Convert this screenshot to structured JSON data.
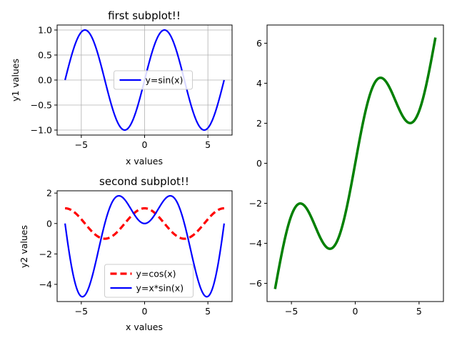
{
  "chart_data": [
    {
      "type": "line",
      "title": "first subplot!!",
      "xlabel": "x values",
      "ylabel": "y1 values",
      "xlim": [
        -6.91,
        6.91
      ],
      "ylim": [
        -1.1,
        1.1
      ],
      "xticks": [
        -5,
        0,
        5
      ],
      "xtick_labels": [
        "−5",
        "0",
        "5"
      ],
      "yticks": [
        -1.0,
        -0.5,
        0.0,
        0.5,
        1.0
      ],
      "ytick_labels": [
        "−1.0",
        "−0.5",
        "0.0",
        "0.5",
        "1.0"
      ],
      "grid": true,
      "legend": {
        "placement": "center",
        "entries": [
          "y=sin(x)"
        ]
      },
      "series": [
        {
          "name": "y=sin(x)",
          "function": "sin(x)",
          "x_range": [
            -6.2832,
            6.2832
          ],
          "color": "#0000ff",
          "style": "solid"
        }
      ]
    },
    {
      "type": "line",
      "title": "second subplot!!",
      "xlabel": "x values",
      "ylabel": "y2 values",
      "xlim": [
        -6.91,
        6.91
      ],
      "ylim": [
        -5.13,
        2.15
      ],
      "xticks": [
        -5,
        0,
        5
      ],
      "xtick_labels": [
        "−5",
        "0",
        "5"
      ],
      "yticks": [
        -4,
        -2,
        0,
        2
      ],
      "ytick_labels": [
        "−4",
        "−2",
        "0",
        "2"
      ],
      "grid": false,
      "legend": {
        "placement": "lower-center",
        "entries": [
          "y=cos(x)",
          "y=x*sin(x)"
        ]
      },
      "series": [
        {
          "name": "y=cos(x)",
          "function": "cos(x)",
          "x_range": [
            -6.2832,
            6.2832
          ],
          "color": "#ff0000",
          "style": "dashed"
        },
        {
          "name": "y=x*sin(x)",
          "function": "x*sin(x)",
          "x_range": [
            -6.2832,
            6.2832
          ],
          "color": "#0000ff",
          "style": "solid"
        }
      ]
    },
    {
      "type": "line",
      "title": "",
      "xlabel": "",
      "ylabel": "",
      "xlim": [
        -6.91,
        6.91
      ],
      "ylim": [
        -6.91,
        6.91
      ],
      "xticks": [
        -5,
        0,
        5
      ],
      "xtick_labels": [
        "−5",
        "0",
        "5"
      ],
      "yticks": [
        -6,
        -4,
        -2,
        0,
        2,
        4,
        6
      ],
      "ytick_labels": [
        "−6",
        "−4",
        "−2",
        "0",
        "2",
        "4",
        "6"
      ],
      "grid": false,
      "legend": null,
      "series": [
        {
          "function": "x + 2.5*sin(x)",
          "x_range": [
            -6.2832,
            6.2832
          ],
          "color": "#008000",
          "style": "solid"
        }
      ]
    }
  ]
}
